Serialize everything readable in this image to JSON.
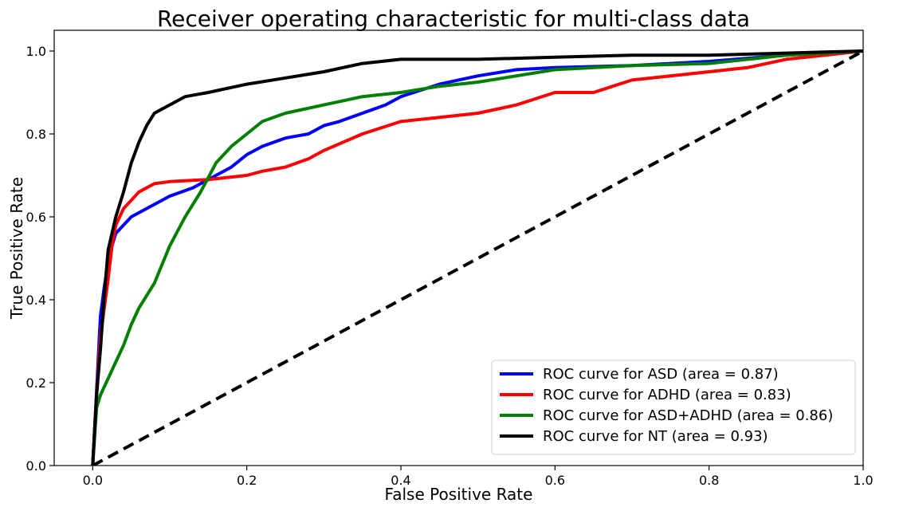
{
  "chart_data": {
    "type": "line",
    "title": "Receiver operating characteristic for multi-class data",
    "xlabel": "False Positive Rate",
    "ylabel": "True Positive Rate",
    "xlim": [
      -0.05,
      1.0
    ],
    "ylim": [
      0.0,
      1.05
    ],
    "x_ticks": [
      0.0,
      0.2,
      0.4,
      0.6,
      0.8,
      1.0
    ],
    "x_tick_labels": [
      "0.0",
      "0.2",
      "0.4",
      "0.6",
      "0.8",
      "1.0"
    ],
    "y_ticks": [
      0.0,
      0.2,
      0.4,
      0.6,
      0.8,
      1.0
    ],
    "y_tick_labels": [
      "0.0",
      "0.2",
      "0.4",
      "0.6",
      "0.8",
      "1.0"
    ],
    "grid": false,
    "legend_position": "lower-right",
    "series": [
      {
        "name": "ROC curve for ASD (area = 0.87)",
        "color": "#0000ff",
        "x": [
          0.0,
          0.005,
          0.01,
          0.015,
          0.02,
          0.025,
          0.03,
          0.04,
          0.05,
          0.07,
          0.1,
          0.13,
          0.15,
          0.18,
          0.2,
          0.22,
          0.25,
          0.28,
          0.3,
          0.32,
          0.35,
          0.38,
          0.4,
          0.45,
          0.5,
          0.55,
          0.6,
          0.7,
          0.8,
          0.9,
          1.0
        ],
        "y": [
          0.0,
          0.18,
          0.36,
          0.43,
          0.49,
          0.53,
          0.56,
          0.58,
          0.6,
          0.62,
          0.65,
          0.67,
          0.69,
          0.72,
          0.75,
          0.77,
          0.79,
          0.8,
          0.82,
          0.83,
          0.85,
          0.87,
          0.89,
          0.92,
          0.94,
          0.955,
          0.96,
          0.965,
          0.975,
          0.99,
          1.0
        ]
      },
      {
        "name": "ROC curve for ADHD (area = 0.83)",
        "color": "#ff0000",
        "x": [
          0.0,
          0.005,
          0.01,
          0.015,
          0.02,
          0.025,
          0.03,
          0.04,
          0.05,
          0.06,
          0.08,
          0.1,
          0.15,
          0.2,
          0.22,
          0.25,
          0.28,
          0.3,
          0.35,
          0.4,
          0.45,
          0.5,
          0.55,
          0.6,
          0.65,
          0.7,
          0.75,
          0.8,
          0.85,
          0.9,
          0.95,
          1.0
        ],
        "y": [
          0.0,
          0.17,
          0.31,
          0.38,
          0.45,
          0.53,
          0.58,
          0.62,
          0.64,
          0.66,
          0.68,
          0.685,
          0.69,
          0.7,
          0.71,
          0.72,
          0.74,
          0.76,
          0.8,
          0.83,
          0.84,
          0.85,
          0.87,
          0.9,
          0.9,
          0.93,
          0.94,
          0.95,
          0.96,
          0.98,
          0.99,
          1.0
        ]
      },
      {
        "name": "ROC curve for ASD+ADHD (area = 0.86)",
        "color": "#008000",
        "x": [
          0.0,
          0.005,
          0.01,
          0.02,
          0.03,
          0.04,
          0.05,
          0.06,
          0.07,
          0.08,
          0.1,
          0.12,
          0.14,
          0.16,
          0.18,
          0.2,
          0.22,
          0.25,
          0.3,
          0.35,
          0.4,
          0.45,
          0.5,
          0.55,
          0.6,
          0.7,
          0.8,
          0.9,
          0.95,
          1.0
        ],
        "y": [
          0.0,
          0.14,
          0.17,
          0.21,
          0.25,
          0.29,
          0.34,
          0.38,
          0.41,
          0.44,
          0.53,
          0.6,
          0.66,
          0.73,
          0.77,
          0.8,
          0.83,
          0.85,
          0.87,
          0.89,
          0.9,
          0.915,
          0.925,
          0.94,
          0.955,
          0.965,
          0.97,
          0.99,
          0.995,
          1.0
        ]
      },
      {
        "name": "ROC curve for NT (area = 0.93)",
        "color": "#000000",
        "x": [
          0.0,
          0.005,
          0.01,
          0.015,
          0.02,
          0.025,
          0.03,
          0.04,
          0.05,
          0.06,
          0.07,
          0.08,
          0.09,
          0.1,
          0.12,
          0.15,
          0.2,
          0.25,
          0.3,
          0.35,
          0.4,
          0.5,
          0.6,
          0.7,
          0.8,
          0.9,
          1.0
        ],
        "y": [
          0.0,
          0.17,
          0.28,
          0.41,
          0.52,
          0.56,
          0.6,
          0.66,
          0.73,
          0.78,
          0.82,
          0.85,
          0.86,
          0.87,
          0.89,
          0.9,
          0.92,
          0.935,
          0.95,
          0.97,
          0.98,
          0.98,
          0.985,
          0.99,
          0.99,
          0.995,
          1.0
        ]
      },
      {
        "name": "",
        "color": "#000000",
        "style": "dashed",
        "x": [
          0.0,
          1.0
        ],
        "y": [
          0.0,
          1.0
        ]
      }
    ]
  }
}
